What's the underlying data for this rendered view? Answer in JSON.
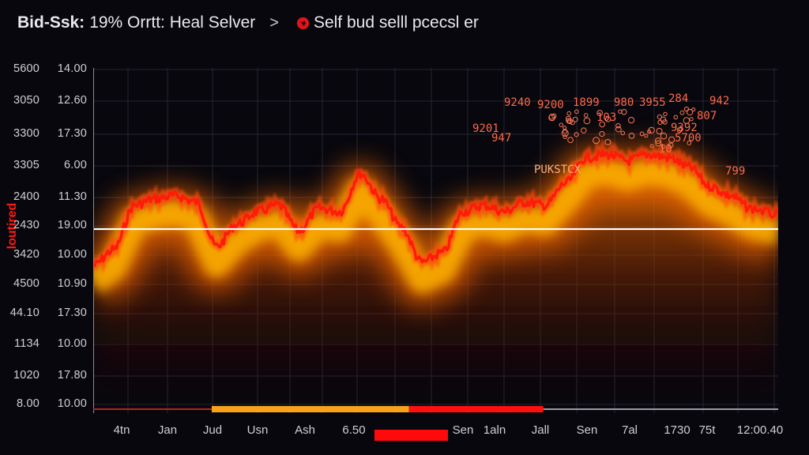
{
  "header": {
    "title_bold": "Bid-Ssk:",
    "title_rest": "19% Orrtt: Heal Selver",
    "separator": ">",
    "brand_icon": "red-rooster-logo-icon",
    "breadcrumb_current": "Self bud selll pcecsl er"
  },
  "colors": {
    "background": "#07070d",
    "line": "#ff1a0a",
    "glow_inner": "#ffb300",
    "glow_outer": "#ff6a00",
    "reference_line": "#ffffff",
    "annotation": "#ff6a4a",
    "grid": "#2a2a36"
  },
  "chart_data": {
    "type": "line",
    "title": "Bid-Ssk: 19% Orrtt: Heal Selver",
    "subtitle": "Self bud selll pcecsl er",
    "ylabel": "loutired",
    "xlabel": "",
    "grid": true,
    "legend_position": "none",
    "y_ticks_left": [
      "5600",
      "3050",
      "3300",
      "3305",
      "2400",
      "2430",
      "3420",
      "4500",
      "44.10",
      "1134",
      "1020",
      "8.00"
    ],
    "y_ticks_right": [
      "14.00",
      "12.60",
      "17.30",
      "6.00",
      "11.30",
      "19.00",
      "10.00",
      "10.90",
      "17.30",
      "10.00",
      "17.80",
      "10.00"
    ],
    "x_ticks": [
      "4tn",
      "Jan",
      "Jud",
      "Usn",
      "Ash",
      "6.50",
      "Sen",
      "1aln",
      "Jall",
      "Sen",
      "7al",
      "1730",
      "75t",
      "12:00.40"
    ],
    "reference_line_y": "19.00",
    "annotations": [
      "9240",
      "9200",
      "1899",
      "980",
      "3955",
      "284",
      "942",
      "9201",
      "947",
      "103",
      "9392",
      "807",
      "5700",
      "10",
      "PUKSTCX",
      "799"
    ],
    "x": [
      0,
      0.03,
      0.06,
      0.09,
      0.12,
      0.15,
      0.18,
      0.21,
      0.24,
      0.27,
      0.3,
      0.33,
      0.36,
      0.39,
      0.42,
      0.45,
      0.48,
      0.51,
      0.54,
      0.57,
      0.6,
      0.63,
      0.66,
      0.69,
      0.72,
      0.75,
      0.78,
      0.81,
      0.84,
      0.87,
      0.9,
      0.93,
      0.96,
      1.0
    ],
    "series": [
      {
        "name": "price",
        "values": [
          4.4,
          4.9,
          6.3,
          6.5,
          6.6,
          6.4,
          5.0,
          5.7,
          6.1,
          6.3,
          5.5,
          6.2,
          6.1,
          7.3,
          6.5,
          5.6,
          4.5,
          4.8,
          6.1,
          6.3,
          6.1,
          6.4,
          6.3,
          7.0,
          7.8,
          7.9,
          7.7,
          7.9,
          7.8,
          7.5,
          6.9,
          6.6,
          6.2,
          6.0
        ]
      }
    ],
    "range_strip": [
      {
        "from": 0.0,
        "to": 0.173,
        "color": "#c0201a",
        "thin": true
      },
      {
        "from": 0.173,
        "to": 0.461,
        "color": "#f7a21a"
      },
      {
        "from": 0.461,
        "to": 0.657,
        "color": "#ff1010"
      },
      {
        "from": 0.657,
        "to": 1.0,
        "color": "#9a9aa2",
        "thin": true
      }
    ],
    "legend_swatch_color": "#ff0a0a"
  }
}
